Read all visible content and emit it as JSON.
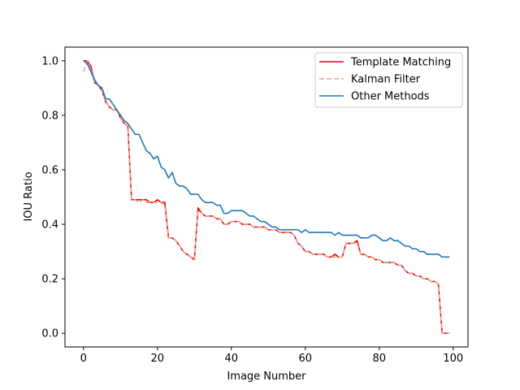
{
  "chart_data": {
    "type": "line",
    "title": "",
    "xlabel": "Image Number",
    "ylabel": "IOU Ratio",
    "xlim": [
      -5,
      104
    ],
    "ylim": [
      -0.05,
      1.05
    ],
    "xticks": [
      0,
      20,
      40,
      60,
      80,
      100
    ],
    "yticks": [
      0.0,
      0.2,
      0.4,
      0.6,
      0.8,
      1.0
    ],
    "xtick_labels": [
      "0",
      "20",
      "40",
      "60",
      "80",
      "100"
    ],
    "ytick_labels": [
      "0.0",
      "0.2",
      "0.4",
      "0.6",
      "0.8",
      "1.0"
    ],
    "grid": false,
    "legend_position": "top-right",
    "series": [
      {
        "name": "Template Matching",
        "color": "#e8000b",
        "style": "solid",
        "values": [
          1.0,
          1.0,
          0.98,
          0.92,
          0.91,
          0.89,
          0.85,
          0.83,
          0.82,
          0.82,
          0.79,
          0.77,
          0.76,
          0.49,
          0.49,
          0.49,
          0.49,
          0.49,
          0.48,
          0.48,
          0.49,
          0.48,
          0.48,
          0.35,
          0.35,
          0.34,
          0.32,
          0.3,
          0.29,
          0.28,
          0.27,
          0.46,
          0.44,
          0.43,
          0.43,
          0.43,
          0.42,
          0.42,
          0.4,
          0.4,
          0.41,
          0.41,
          0.41,
          0.4,
          0.4,
          0.4,
          0.39,
          0.39,
          0.39,
          0.39,
          0.38,
          0.38,
          0.38,
          0.37,
          0.37,
          0.37,
          0.37,
          0.36,
          0.33,
          0.32,
          0.3,
          0.3,
          0.29,
          0.29,
          0.29,
          0.29,
          0.28,
          0.28,
          0.29,
          0.28,
          0.28,
          0.33,
          0.33,
          0.33,
          0.34,
          0.29,
          0.29,
          0.28,
          0.28,
          0.27,
          0.27,
          0.26,
          0.26,
          0.26,
          0.26,
          0.25,
          0.25,
          0.23,
          0.22,
          0.22,
          0.21,
          0.21,
          0.2,
          0.2,
          0.19,
          0.19,
          0.18,
          0.0,
          0.0,
          0.0
        ]
      },
      {
        "name": "Kalman Filter",
        "color": "#e8a48c",
        "style": "dashed",
        "values": [
          0.96,
          1.0,
          0.97,
          0.92,
          0.91,
          0.89,
          0.85,
          0.83,
          0.82,
          0.82,
          0.79,
          0.77,
          0.76,
          0.49,
          0.49,
          0.48,
          0.49,
          0.48,
          0.48,
          0.48,
          0.48,
          0.48,
          0.47,
          0.35,
          0.35,
          0.34,
          0.32,
          0.3,
          0.29,
          0.28,
          0.27,
          0.45,
          0.44,
          0.43,
          0.43,
          0.43,
          0.42,
          0.42,
          0.4,
          0.4,
          0.41,
          0.41,
          0.41,
          0.4,
          0.4,
          0.4,
          0.39,
          0.39,
          0.39,
          0.39,
          0.38,
          0.38,
          0.38,
          0.37,
          0.37,
          0.37,
          0.37,
          0.36,
          0.33,
          0.32,
          0.3,
          0.3,
          0.29,
          0.29,
          0.29,
          0.29,
          0.28,
          0.28,
          0.28,
          0.28,
          0.28,
          0.33,
          0.33,
          0.33,
          0.33,
          0.29,
          0.29,
          0.28,
          0.28,
          0.27,
          0.27,
          0.26,
          0.26,
          0.26,
          0.26,
          0.25,
          0.25,
          0.23,
          0.22,
          0.22,
          0.21,
          0.21,
          0.2,
          0.2,
          0.19,
          0.19,
          0.18,
          0.0,
          0.0,
          0.0
        ]
      },
      {
        "name": "Other Methods",
        "color": "#1f77b4",
        "style": "solid",
        "values": [
          1.0,
          0.99,
          0.96,
          0.93,
          0.91,
          0.9,
          0.86,
          0.86,
          0.84,
          0.82,
          0.8,
          0.78,
          0.77,
          0.75,
          0.73,
          0.73,
          0.7,
          0.67,
          0.66,
          0.64,
          0.65,
          0.61,
          0.6,
          0.57,
          0.59,
          0.55,
          0.54,
          0.54,
          0.53,
          0.51,
          0.51,
          0.51,
          0.49,
          0.48,
          0.48,
          0.48,
          0.47,
          0.47,
          0.44,
          0.44,
          0.45,
          0.45,
          0.45,
          0.45,
          0.44,
          0.43,
          0.43,
          0.42,
          0.41,
          0.41,
          0.4,
          0.39,
          0.39,
          0.38,
          0.38,
          0.38,
          0.38,
          0.38,
          0.38,
          0.37,
          0.38,
          0.37,
          0.37,
          0.37,
          0.37,
          0.37,
          0.37,
          0.37,
          0.36,
          0.37,
          0.36,
          0.36,
          0.36,
          0.36,
          0.36,
          0.35,
          0.35,
          0.35,
          0.36,
          0.36,
          0.35,
          0.34,
          0.34,
          0.35,
          0.34,
          0.34,
          0.33,
          0.32,
          0.32,
          0.31,
          0.31,
          0.3,
          0.3,
          0.29,
          0.29,
          0.29,
          0.29,
          0.28,
          0.28,
          0.28
        ]
      }
    ]
  }
}
